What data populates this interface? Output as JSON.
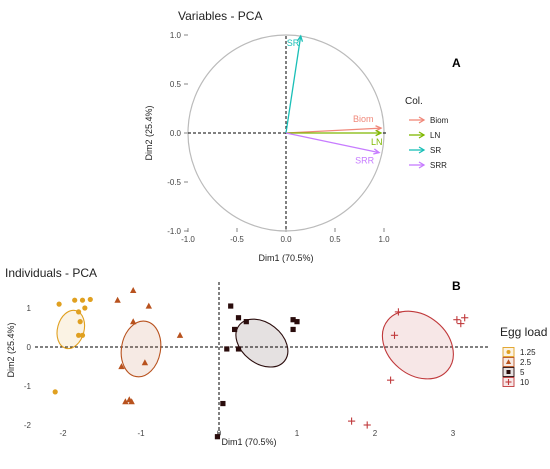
{
  "chart_data": [
    {
      "type": "scatter",
      "panel_label": "A",
      "title": "Variables - PCA",
      "xlabel": "Dim1 (70.5%)",
      "ylabel": "Dim2 (25.4%)",
      "xlim": [
        -1.0,
        1.0
      ],
      "ylim": [
        -1.0,
        1.0
      ],
      "x_ticks": [
        "-1.0",
        "-0.5",
        "0.0",
        "0.5",
        "1.0"
      ],
      "y_ticks": [
        "1.0",
        "0.5",
        "0.0",
        "-0.5",
        "-1.0"
      ],
      "correlation_circle": true,
      "legend_title": "Col.",
      "legend_position": "right",
      "series": [
        {
          "name": "Biom",
          "color": "#f0887a",
          "x": 0.97,
          "y": 0.05
        },
        {
          "name": "LN",
          "color": "#7fb800",
          "x": 0.97,
          "y": 0.0
        },
        {
          "name": "SR",
          "color": "#19bfb7",
          "x": 0.15,
          "y": 0.99
        },
        {
          "name": "SRR",
          "color": "#c77cff",
          "x": 0.95,
          "y": -0.2
        }
      ]
    },
    {
      "type": "scatter",
      "panel_label": "B",
      "title": "Individuals - PCA",
      "xlabel": "Dim1 (70.5%)",
      "ylabel": "Dim2 (25.4%)",
      "xlim": [
        -2.5,
        3.3
      ],
      "ylim": [
        -2.35,
        1.6
      ],
      "x_ticks": [
        "-2",
        "-1",
        "0",
        "1",
        "2",
        "3"
      ],
      "y_ticks": [
        "1",
        "0",
        "-1",
        "-2"
      ],
      "legend_title": "Egg load",
      "legend_position": "right",
      "series": [
        {
          "name": "1.25",
          "marker": "circle",
          "color": "#e0a020",
          "points": [
            [
              -1.85,
              1.2
            ],
            [
              -1.75,
              1.2
            ],
            [
              -1.65,
              1.22
            ],
            [
              -2.05,
              1.1
            ],
            [
              -1.72,
              1.0
            ],
            [
              -1.8,
              0.9
            ],
            [
              -1.78,
              0.65
            ],
            [
              -1.8,
              0.3
            ],
            [
              -1.75,
              0.3
            ],
            [
              -2.1,
              -1.15
            ]
          ],
          "ellipse": {
            "cx": -1.9,
            "cy": 0.45,
            "rx": 0.17,
            "ry": 0.5,
            "angle_deg": 15
          }
        },
        {
          "name": "2.5",
          "marker": "triangle",
          "color": "#b8521e",
          "points": [
            [
              -1.1,
              1.45
            ],
            [
              -0.9,
              1.05
            ],
            [
              -1.3,
              1.2
            ],
            [
              -1.1,
              0.65
            ],
            [
              -0.5,
              0.3
            ],
            [
              -0.95,
              -0.4
            ],
            [
              -1.25,
              -0.5
            ],
            [
              -1.15,
              -1.35
            ],
            [
              -1.2,
              -1.4
            ],
            [
              -1.12,
              -1.4
            ]
          ],
          "ellipse": {
            "cx": -1.0,
            "cy": -0.05,
            "rx": 0.25,
            "ry": 0.72,
            "angle_deg": 10
          }
        },
        {
          "name": "5",
          "marker": "square",
          "color": "#2a0c0c",
          "points": [
            [
              0.15,
              1.05
            ],
            [
              0.2,
              0.45
            ],
            [
              0.1,
              -0.05
            ],
            [
              0.25,
              -0.05
            ],
            [
              0.25,
              0.75
            ],
            [
              0.35,
              0.65
            ],
            [
              0.95,
              0.7
            ],
            [
              1.0,
              0.65
            ],
            [
              0.95,
              0.45
            ],
            [
              0.05,
              -1.45
            ],
            [
              -0.02,
              -2.3
            ]
          ],
          "ellipse": {
            "cx": 0.55,
            "cy": 0.1,
            "rx": 0.37,
            "ry": 0.52,
            "angle_deg": 38
          }
        },
        {
          "name": "10",
          "marker": "plus",
          "color": "#c0393b",
          "points": [
            [
              2.3,
              0.9
            ],
            [
              2.25,
              0.3
            ],
            [
              2.2,
              -0.85
            ],
            [
              3.05,
              0.7
            ],
            [
              3.1,
              0.6
            ],
            [
              3.15,
              0.75
            ],
            [
              1.7,
              -1.9
            ],
            [
              1.9,
              -2.0
            ]
          ],
          "ellipse": {
            "cx": 2.55,
            "cy": 0.05,
            "rx": 0.38,
            "ry": 1.0,
            "angle_deg": -50
          }
        }
      ]
    }
  ]
}
